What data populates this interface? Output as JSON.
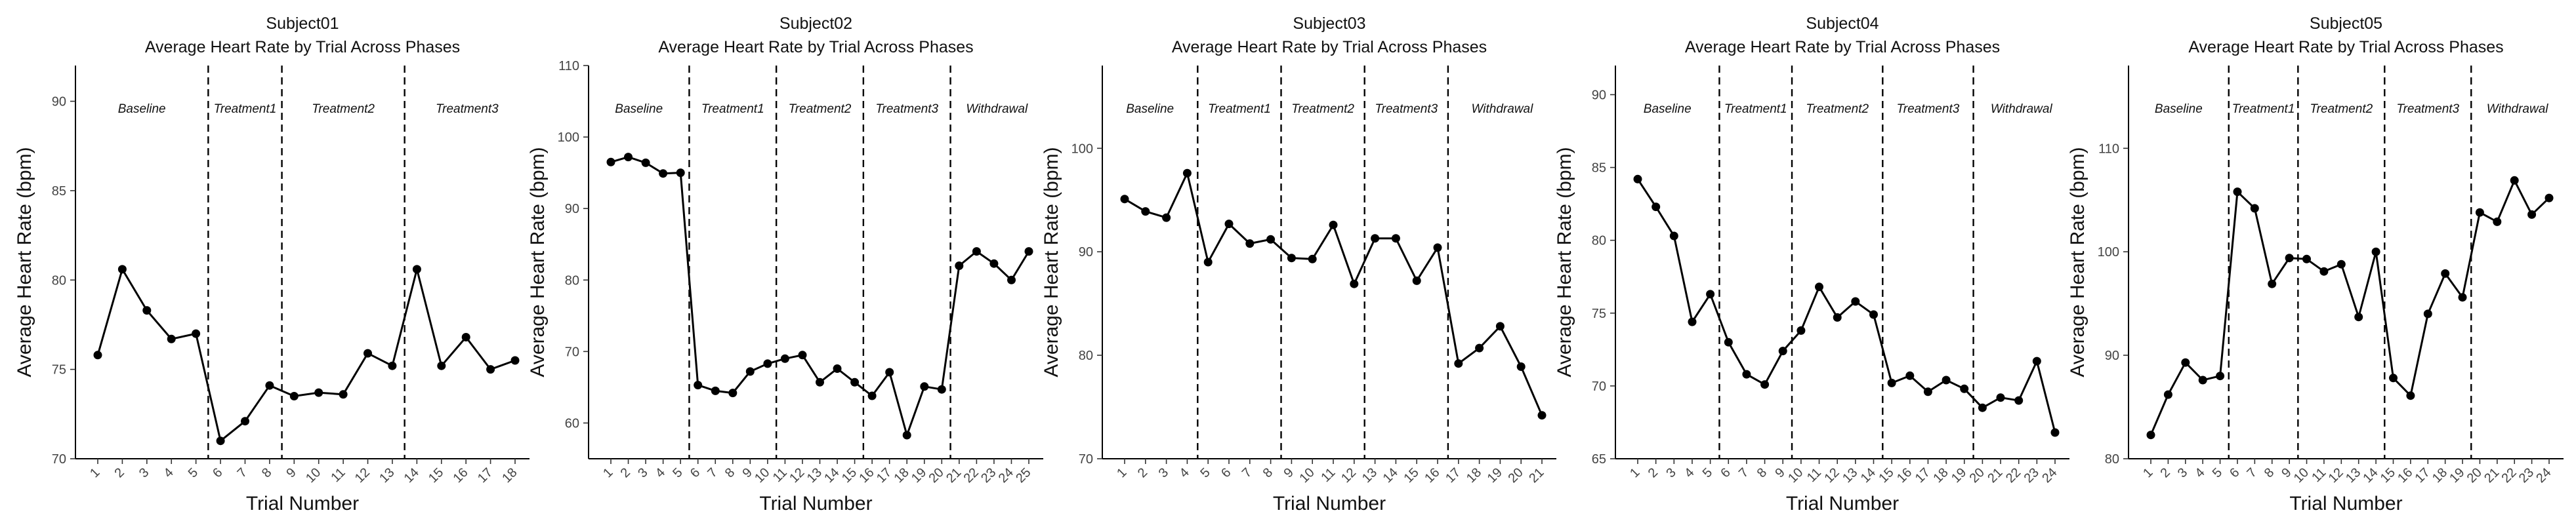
{
  "chart_data": [
    {
      "type": "line",
      "title": "Subject01",
      "subtitle": "Average Heart Rate by Trial Across Phases",
      "xlabel": "Trial Number",
      "ylabel": "Average Heart Rate (bpm)",
      "ylim": [
        70,
        92
      ],
      "yticks": [
        70,
        75,
        80,
        85,
        90
      ],
      "x": [
        1,
        2,
        3,
        4,
        5,
        6,
        7,
        8,
        9,
        10,
        11,
        12,
        13,
        14,
        15,
        16,
        17,
        18
      ],
      "y": [
        75.8,
        80.6,
        78.3,
        76.7,
        77.0,
        71.0,
        72.1,
        74.1,
        73.5,
        73.7,
        73.6,
        75.9,
        75.2,
        80.6,
        75.2,
        76.8,
        75.0,
        75.5
      ],
      "phase_breaks": [
        5.5,
        8.5,
        13.5
      ],
      "phases": [
        "Baseline",
        "Treatment1",
        "Treatment2",
        "Treatment3"
      ]
    },
    {
      "type": "line",
      "title": "Subject02",
      "subtitle": "Average Heart Rate by Trial Across Phases",
      "xlabel": "Trial Number",
      "ylabel": "Average Heart Rate (bpm)",
      "ylim": [
        55,
        110
      ],
      "yticks": [
        60,
        70,
        80,
        90,
        100,
        110
      ],
      "x": [
        1,
        2,
        3,
        4,
        5,
        6,
        7,
        8,
        9,
        10,
        11,
        12,
        13,
        14,
        15,
        16,
        17,
        18,
        19,
        20,
        21,
        22,
        23,
        24,
        25
      ],
      "y": [
        96.5,
        97.2,
        96.4,
        94.9,
        95.0,
        65.3,
        64.5,
        64.2,
        67.2,
        68.3,
        69.0,
        69.5,
        65.7,
        67.6,
        65.7,
        63.8,
        67.1,
        58.3,
        65.1,
        64.7,
        82.0,
        84.0,
        82.3,
        80.0,
        84.0
      ],
      "phase_breaks": [
        5.5,
        10.5,
        15.5,
        20.5
      ],
      "phases": [
        "Baseline",
        "Treatment1",
        "Treatment2",
        "Treatment3",
        "Withdrawal"
      ]
    },
    {
      "type": "line",
      "title": "Subject03",
      "subtitle": "Average Heart Rate by Trial Across Phases",
      "xlabel": "Trial Number",
      "ylabel": "Average Heart Rate (bpm)",
      "ylim": [
        70,
        108
      ],
      "yticks": [
        70,
        80,
        90,
        100
      ],
      "x": [
        1,
        2,
        3,
        4,
        5,
        6,
        7,
        8,
        9,
        10,
        11,
        12,
        13,
        14,
        15,
        16,
        17,
        18,
        19,
        20,
        21
      ],
      "y": [
        95.1,
        93.9,
        93.3,
        97.6,
        89.0,
        92.7,
        90.8,
        91.2,
        89.4,
        89.3,
        92.6,
        86.9,
        91.3,
        91.3,
        87.2,
        90.4,
        79.2,
        80.7,
        82.8,
        78.9,
        74.2
      ],
      "phase_breaks": [
        4.5,
        8.5,
        12.5,
        16.5
      ],
      "phases": [
        "Baseline",
        "Treatment1",
        "Treatment2",
        "Treatment3",
        "Withdrawal"
      ]
    },
    {
      "type": "line",
      "title": "Subject04",
      "subtitle": "Average Heart Rate by Trial Across Phases",
      "xlabel": "Trial Number",
      "ylabel": "Average Heart Rate (bpm)",
      "ylim": [
        65,
        92
      ],
      "yticks": [
        65,
        70,
        75,
        80,
        85,
        90
      ],
      "x": [
        1,
        2,
        3,
        4,
        5,
        6,
        7,
        8,
        9,
        10,
        11,
        12,
        13,
        14,
        15,
        16,
        17,
        18,
        19,
        20,
        21,
        22,
        23,
        24
      ],
      "y": [
        84.2,
        82.3,
        80.3,
        74.4,
        76.3,
        73.0,
        70.8,
        70.1,
        72.4,
        73.8,
        76.8,
        74.7,
        75.8,
        74.9,
        70.2,
        70.7,
        69.6,
        70.4,
        69.8,
        68.5,
        69.2,
        69.0,
        71.7,
        66.8
      ],
      "phase_breaks": [
        5.5,
        9.5,
        14.5,
        19.5
      ],
      "phases": [
        "Baseline",
        "Treatment1",
        "Treatment2",
        "Treatment3",
        "Withdrawal"
      ]
    },
    {
      "type": "line",
      "title": "Subject05",
      "subtitle": "Average Heart Rate by Trial Across Phases",
      "xlabel": "Trial Number",
      "ylabel": "Average Heart Rate (bpm)",
      "ylim": [
        80,
        118
      ],
      "yticks": [
        80,
        90,
        100,
        110
      ],
      "x": [
        1,
        2,
        3,
        4,
        5,
        6,
        7,
        8,
        9,
        10,
        11,
        12,
        13,
        14,
        15,
        16,
        17,
        18,
        19,
        20,
        21,
        22,
        23,
        24
      ],
      "y": [
        82.3,
        86.2,
        89.3,
        87.6,
        88.0,
        105.8,
        104.2,
        96.9,
        99.4,
        99.3,
        98.1,
        98.8,
        93.7,
        100.0,
        87.8,
        86.1,
        94.0,
        97.9,
        95.6,
        103.8,
        102.9,
        106.9,
        103.6,
        105.2
      ],
      "phase_breaks": [
        5.5,
        9.5,
        14.5,
        19.5
      ],
      "phases": [
        "Baseline",
        "Treatment1",
        "Treatment2",
        "Treatment3",
        "Withdrawal"
      ]
    }
  ]
}
